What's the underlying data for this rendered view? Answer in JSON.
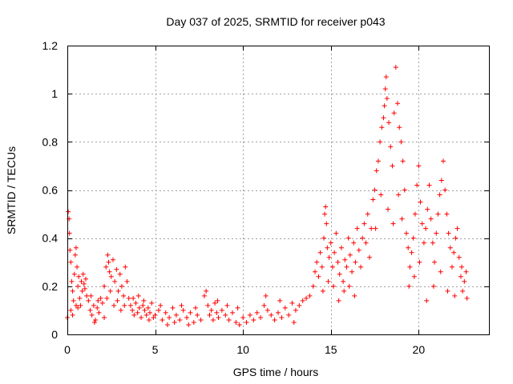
{
  "chart_data": {
    "type": "scatter",
    "title": "Day 037 of 2025, SRMTID for receiver p043",
    "xlabel": "GPS time / hours",
    "ylabel": "SRMTID / TECUs",
    "xlim": [
      0,
      24
    ],
    "ylim": [
      0,
      1.2
    ],
    "x_ticks": [
      0,
      5,
      10,
      15,
      20
    ],
    "x_tick_labels": [
      "0",
      "5",
      "10",
      "15",
      "20"
    ],
    "y_ticks": [
      0,
      0.2,
      0.4,
      0.6,
      0.8,
      1.0,
      1.2
    ],
    "y_tick_labels": [
      "0",
      "0.2",
      "0.4",
      "0.6",
      "0.8",
      "1",
      "1.2"
    ],
    "grid": true,
    "marker": "+",
    "color": "#ff0000",
    "series": [
      {
        "name": "SRMTID",
        "points": [
          [
            0.05,
            0.51
          ],
          [
            0.1,
            0.48
          ],
          [
            0.12,
            0.42
          ],
          [
            0.15,
            0.35
          ],
          [
            0.2,
            0.3
          ],
          [
            0.25,
            0.22
          ],
          [
            0.3,
            0.18
          ],
          [
            0.35,
            0.14
          ],
          [
            0.4,
            0.25
          ],
          [
            0.45,
            0.33
          ],
          [
            0.5,
            0.36
          ],
          [
            0.55,
            0.28
          ],
          [
            0.6,
            0.2
          ],
          [
            0.65,
            0.24
          ],
          [
            0.7,
            0.15
          ],
          [
            0.75,
            0.12
          ],
          [
            0.8,
            0.22
          ],
          [
            0.85,
            0.18
          ],
          [
            0.9,
            0.25
          ],
          [
            0.95,
            0.21
          ],
          [
            1.0,
            0.19
          ],
          [
            1.05,
            0.23
          ],
          [
            1.1,
            0.16
          ],
          [
            0.2,
            0.1
          ],
          [
            0.3,
            0.08
          ],
          [
            0.5,
            0.12
          ],
          [
            0.6,
            0.11
          ],
          [
            0.0,
            0.07
          ],
          [
            1.2,
            0.14
          ],
          [
            1.3,
            0.1
          ],
          [
            1.4,
            0.08
          ],
          [
            1.5,
            0.12
          ],
          [
            1.6,
            0.06
          ],
          [
            1.7,
            0.11
          ],
          [
            1.8,
            0.09
          ],
          [
            1.9,
            0.15
          ],
          [
            2.0,
            0.13
          ],
          [
            2.1,
            0.07
          ],
          [
            1.35,
            0.16
          ],
          [
            1.55,
            0.05
          ],
          [
            1.75,
            0.14
          ],
          [
            2.1,
            0.2
          ],
          [
            2.2,
            0.28
          ],
          [
            2.3,
            0.33
          ],
          [
            2.35,
            0.3
          ],
          [
            2.4,
            0.26
          ],
          [
            2.5,
            0.24
          ],
          [
            2.6,
            0.31
          ],
          [
            2.7,
            0.22
          ],
          [
            2.8,
            0.27
          ],
          [
            2.9,
            0.18
          ],
          [
            3.0,
            0.25
          ],
          [
            3.1,
            0.2
          ],
          [
            3.2,
            0.16
          ],
          [
            3.3,
            0.28
          ],
          [
            3.4,
            0.22
          ],
          [
            3.5,
            0.15
          ],
          [
            2.25,
            0.15
          ],
          [
            2.45,
            0.18
          ],
          [
            2.65,
            0.12
          ],
          [
            2.85,
            0.14
          ],
          [
            3.05,
            0.1
          ],
          [
            3.25,
            0.12
          ],
          [
            3.6,
            0.12
          ],
          [
            3.7,
            0.1
          ],
          [
            3.8,
            0.08
          ],
          [
            3.9,
            0.13
          ],
          [
            4.0,
            0.09
          ],
          [
            4.1,
            0.11
          ],
          [
            4.2,
            0.07
          ],
          [
            4.3,
            0.12
          ],
          [
            4.4,
            0.1
          ],
          [
            4.5,
            0.08
          ],
          [
            4.6,
            0.11
          ],
          [
            4.7,
            0.09
          ],
          [
            4.8,
            0.13
          ],
          [
            4.9,
            0.07
          ],
          [
            3.75,
            0.15
          ],
          [
            4.05,
            0.16
          ],
          [
            4.35,
            0.14
          ],
          [
            4.65,
            0.06
          ],
          [
            5.0,
            0.08
          ],
          [
            5.2,
            0.1
          ],
          [
            5.4,
            0.06
          ],
          [
            5.6,
            0.09
          ],
          [
            5.8,
            0.07
          ],
          [
            6.0,
            0.11
          ],
          [
            6.2,
            0.08
          ],
          [
            6.4,
            0.06
          ],
          [
            6.6,
            0.1
          ],
          [
            6.8,
            0.07
          ],
          [
            7.0,
            0.09
          ],
          [
            7.2,
            0.05
          ],
          [
            7.4,
            0.08
          ],
          [
            7.6,
            0.06
          ],
          [
            5.3,
            0.12
          ],
          [
            5.7,
            0.04
          ],
          [
            6.1,
            0.05
          ],
          [
            6.5,
            0.12
          ],
          [
            6.9,
            0.04
          ],
          [
            7.3,
            0.11
          ],
          [
            7.8,
            0.16
          ],
          [
            7.9,
            0.18
          ],
          [
            8.0,
            0.12
          ],
          [
            8.1,
            0.08
          ],
          [
            8.2,
            0.1
          ],
          [
            8.3,
            0.06
          ],
          [
            8.4,
            0.13
          ],
          [
            8.5,
            0.09
          ],
          [
            8.6,
            0.07
          ],
          [
            8.8,
            0.1
          ],
          [
            9.0,
            0.08
          ],
          [
            9.2,
            0.06
          ],
          [
            9.4,
            0.09
          ],
          [
            9.6,
            0.05
          ],
          [
            9.8,
            0.04
          ],
          [
            10.0,
            0.07
          ],
          [
            10.2,
            0.05
          ],
          [
            10.4,
            0.08
          ],
          [
            8.55,
            0.14
          ],
          [
            9.1,
            0.12
          ],
          [
            9.7,
            0.11
          ],
          [
            10.6,
            0.06
          ],
          [
            10.8,
            0.09
          ],
          [
            11.0,
            0.07
          ],
          [
            11.2,
            0.12
          ],
          [
            11.4,
            0.1
          ],
          [
            11.6,
            0.08
          ],
          [
            11.8,
            0.06
          ],
          [
            12.0,
            0.09
          ],
          [
            12.2,
            0.07
          ],
          [
            12.4,
            0.11
          ],
          [
            12.6,
            0.08
          ],
          [
            12.8,
            0.13
          ],
          [
            13.0,
            0.1
          ],
          [
            13.2,
            0.12
          ],
          [
            13.4,
            0.14
          ],
          [
            13.6,
            0.15
          ],
          [
            11.3,
            0.16
          ],
          [
            12.1,
            0.14
          ],
          [
            12.9,
            0.05
          ],
          [
            13.8,
            0.16
          ],
          [
            14.0,
            0.2
          ],
          [
            14.1,
            0.26
          ],
          [
            14.2,
            0.3
          ],
          [
            14.3,
            0.24
          ],
          [
            14.4,
            0.34
          ],
          [
            14.5,
            0.28
          ],
          [
            14.6,
            0.4
          ],
          [
            14.65,
            0.5
          ],
          [
            14.7,
            0.53
          ],
          [
            14.75,
            0.46
          ],
          [
            14.8,
            0.36
          ],
          [
            14.9,
            0.32
          ],
          [
            15.0,
            0.38
          ],
          [
            15.1,
            0.28
          ],
          [
            15.2,
            0.34
          ],
          [
            15.3,
            0.42
          ],
          [
            15.4,
            0.3
          ],
          [
            15.5,
            0.25
          ],
          [
            15.6,
            0.36
          ],
          [
            15.7,
            0.22
          ],
          [
            15.8,
            0.31
          ],
          [
            15.9,
            0.28
          ],
          [
            16.0,
            0.4
          ],
          [
            16.1,
            0.33
          ],
          [
            16.2,
            0.26
          ],
          [
            16.3,
            0.38
          ],
          [
            16.4,
            0.3
          ],
          [
            14.55,
            0.18
          ],
          [
            14.85,
            0.22
          ],
          [
            15.15,
            0.2
          ],
          [
            15.45,
            0.14
          ],
          [
            15.75,
            0.18
          ],
          [
            16.05,
            0.2
          ],
          [
            16.35,
            0.16
          ],
          [
            16.5,
            0.44
          ],
          [
            16.6,
            0.35
          ],
          [
            16.7,
            0.28
          ],
          [
            16.8,
            0.4
          ],
          [
            16.9,
            0.46
          ],
          [
            17.0,
            0.38
          ],
          [
            17.1,
            0.5
          ],
          [
            17.2,
            0.32
          ],
          [
            17.3,
            0.44
          ],
          [
            17.4,
            0.56
          ],
          [
            17.5,
            0.6
          ],
          [
            17.6,
            0.68
          ],
          [
            17.7,
            0.72
          ],
          [
            17.8,
            0.8
          ],
          [
            17.9,
            0.86
          ],
          [
            18.0,
            0.9
          ],
          [
            18.05,
            0.95
          ],
          [
            18.1,
            1.02
          ],
          [
            18.15,
            1.07
          ],
          [
            18.2,
            0.98
          ],
          [
            18.3,
            0.88
          ],
          [
            18.4,
            0.78
          ],
          [
            18.5,
            0.7
          ],
          [
            18.6,
            0.92
          ],
          [
            18.7,
            1.11
          ],
          [
            18.8,
            0.96
          ],
          [
            18.9,
            0.86
          ],
          [
            19.0,
            0.8
          ],
          [
            19.1,
            0.72
          ],
          [
            17.55,
            0.44
          ],
          [
            17.85,
            0.58
          ],
          [
            18.25,
            0.52
          ],
          [
            18.55,
            0.46
          ],
          [
            18.85,
            0.58
          ],
          [
            19.05,
            0.48
          ],
          [
            19.2,
            0.6
          ],
          [
            19.3,
            0.42
          ],
          [
            19.4,
            0.36
          ],
          [
            19.5,
            0.28
          ],
          [
            19.6,
            0.34
          ],
          [
            19.7,
            0.4
          ],
          [
            19.8,
            0.5
          ],
          [
            19.9,
            0.62
          ],
          [
            20.0,
            0.7
          ],
          [
            20.1,
            0.55
          ],
          [
            20.2,
            0.46
          ],
          [
            20.3,
            0.38
          ],
          [
            20.4,
            0.44
          ],
          [
            20.5,
            0.52
          ],
          [
            20.6,
            0.62
          ],
          [
            20.7,
            0.48
          ],
          [
            20.8,
            0.38
          ],
          [
            20.9,
            0.3
          ],
          [
            21.0,
            0.42
          ],
          [
            21.1,
            0.5
          ],
          [
            21.2,
            0.58
          ],
          [
            21.3,
            0.64
          ],
          [
            21.4,
            0.72
          ],
          [
            21.5,
            0.6
          ],
          [
            21.6,
            0.5
          ],
          [
            21.7,
            0.42
          ],
          [
            21.8,
            0.36
          ],
          [
            21.9,
            0.28
          ],
          [
            22.0,
            0.34
          ],
          [
            22.1,
            0.4
          ],
          [
            22.2,
            0.44
          ],
          [
            22.3,
            0.32
          ],
          [
            22.4,
            0.24
          ],
          [
            22.5,
            0.18
          ],
          [
            22.6,
            0.22
          ],
          [
            22.7,
            0.26
          ],
          [
            22.75,
            0.15
          ],
          [
            19.45,
            0.2
          ],
          [
            19.75,
            0.24
          ],
          [
            20.05,
            0.3
          ],
          [
            20.45,
            0.14
          ],
          [
            20.85,
            0.2
          ],
          [
            21.25,
            0.26
          ],
          [
            21.65,
            0.18
          ],
          [
            22.05,
            0.16
          ],
          [
            22.45,
            0.28
          ]
        ]
      }
    ]
  }
}
